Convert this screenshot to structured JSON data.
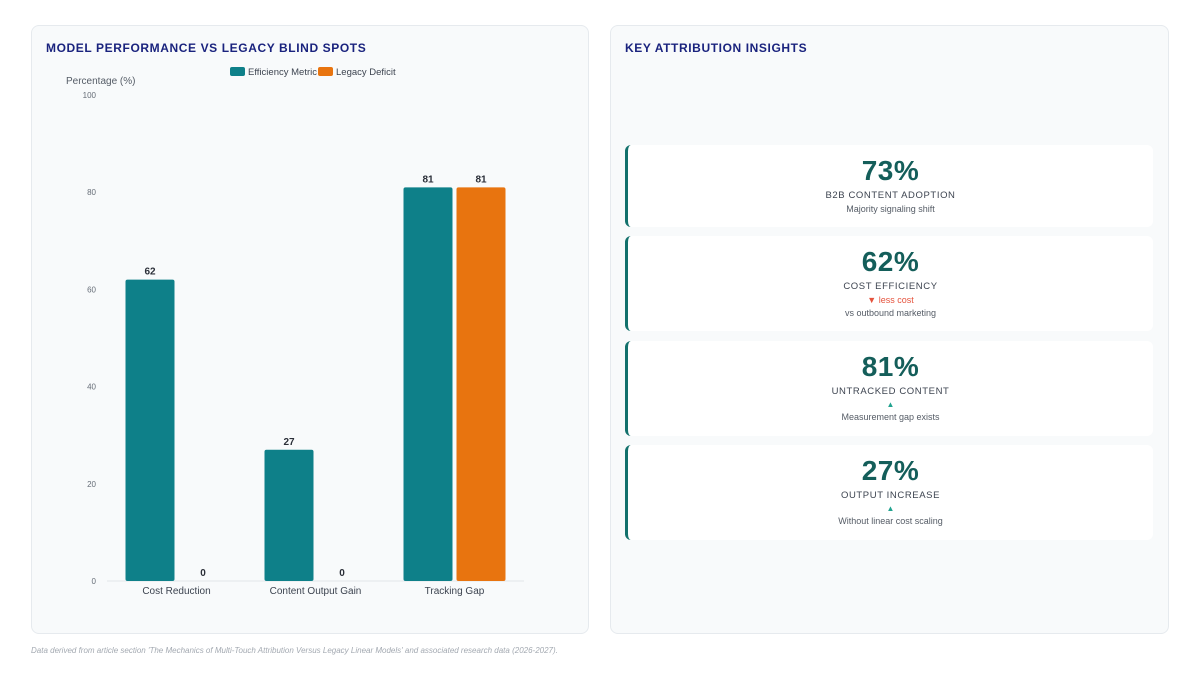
{
  "chart_panel": {
    "title": "MODEL PERFORMANCE VS LEGACY BLIND SPOTS"
  },
  "chart_data": {
    "type": "bar",
    "title": "MODEL PERFORMANCE VS LEGACY BLIND SPOTS",
    "xlabel": "",
    "ylabel": "Percentage (%)",
    "ylim": [
      0,
      100
    ],
    "yticks": [
      0,
      20,
      40,
      60,
      80,
      100
    ],
    "grid": false,
    "legend_position": "top-center",
    "categories": [
      "Cost Reduction",
      "Content Output Gain",
      "Tracking Gap"
    ],
    "series": [
      {
        "name": "Efficiency Metric",
        "color": "#0e8089",
        "values": [
          62,
          27,
          81
        ]
      },
      {
        "name": "Legacy Deficit",
        "color": "#e8740f",
        "values": [
          0,
          0,
          81
        ]
      }
    ]
  },
  "insights_panel": {
    "title": "KEY ATTRIBUTION INSIGHTS",
    "cards": [
      {
        "value": "73%",
        "label": "B2B CONTENT ADOPTION",
        "indicator": "",
        "indicator_type": "",
        "sub": "Majority signaling shift"
      },
      {
        "value": "62%",
        "label": "COST EFFICIENCY",
        "indicator": "▼ less cost",
        "indicator_type": "down",
        "sub": "vs outbound marketing"
      },
      {
        "value": "81%",
        "label": "UNTRACKED CONTENT",
        "indicator": "▲",
        "indicator_type": "up",
        "sub": "Measurement gap exists"
      },
      {
        "value": "27%",
        "label": "OUTPUT INCREASE",
        "indicator": "▲",
        "indicator_type": "up",
        "sub": "Without linear cost scaling"
      }
    ]
  },
  "footnote": "Data derived from article section 'The Mechanics of Multi-Touch Attribution Versus Legacy Linear Models' and associated research data (2026-2027)."
}
